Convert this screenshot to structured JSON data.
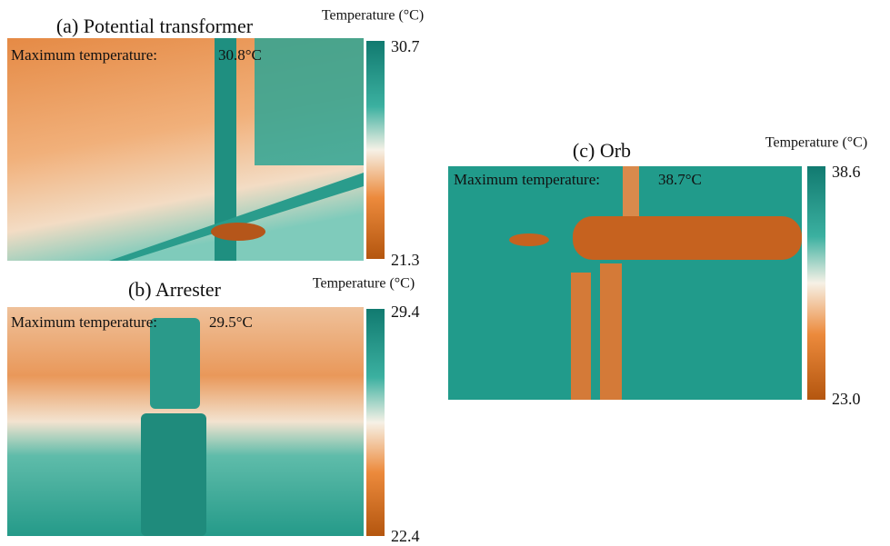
{
  "panels": [
    {
      "title": "(a) Potential transformer",
      "max_label": "Maximum temperature:",
      "max_value": "30.8°C",
      "colorbar": {
        "label": "Temperature (°C)",
        "max": "30.7",
        "min": "21.3"
      }
    },
    {
      "title": "(b) Arrester",
      "max_label": "Maximum temperature:",
      "max_value": "29.5°C",
      "colorbar": {
        "label": "Temperature (°C)",
        "max": "29.4",
        "min": "22.4"
      }
    },
    {
      "title": "(c) Orb",
      "max_label": "Maximum temperature:",
      "max_value": "38.7°C",
      "colorbar": {
        "label": "Temperature (°C)",
        "max": "38.6",
        "min": "23.0"
      }
    }
  ]
}
